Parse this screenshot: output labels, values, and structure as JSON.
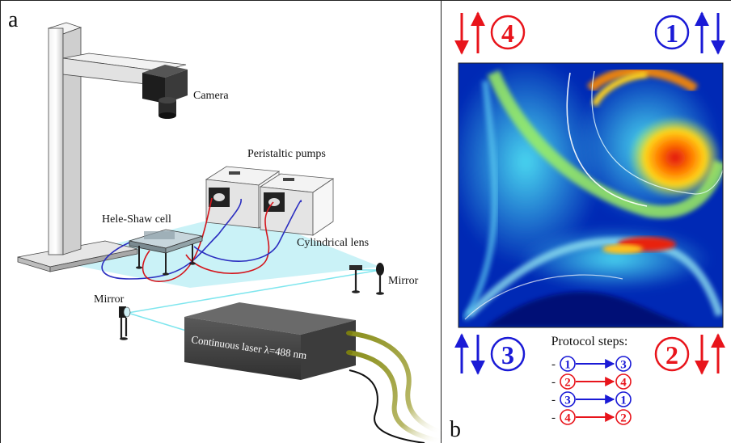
{
  "panel_a": {
    "letter": "a",
    "labels": {
      "camera": "Camera",
      "pumps": "Peristaltic pumps",
      "cell": "Hele-Shaw cell",
      "lens": "Cylindrical lens",
      "mirror_right": "Mirror",
      "mirror_left": "Mirror",
      "laser": "Continuous laser λ=488 nm"
    }
  },
  "panel_b": {
    "letter": "b",
    "corners": {
      "top_left": {
        "number": "4",
        "color": "#e8141b"
      },
      "top_right": {
        "number": "1",
        "color": "#1a1ad6"
      },
      "bottom_left": {
        "number": "3",
        "color": "#1a1ad6"
      },
      "bottom_right": {
        "number": "2",
        "color": "#e8141b"
      }
    },
    "protocol": {
      "title": "Protocol steps:",
      "steps": [
        {
          "from": "1",
          "to": "3",
          "color": "#1a1ad6"
        },
        {
          "from": "2",
          "to": "4",
          "color": "#e8141b"
        },
        {
          "from": "3",
          "to": "1",
          "color": "#1a1ad6"
        },
        {
          "from": "4",
          "to": "2",
          "color": "#e8141b"
        }
      ]
    }
  },
  "colors": {
    "blue": "#1a1ad6",
    "red": "#e8141b",
    "laser_beam": "#7fe6ee"
  }
}
